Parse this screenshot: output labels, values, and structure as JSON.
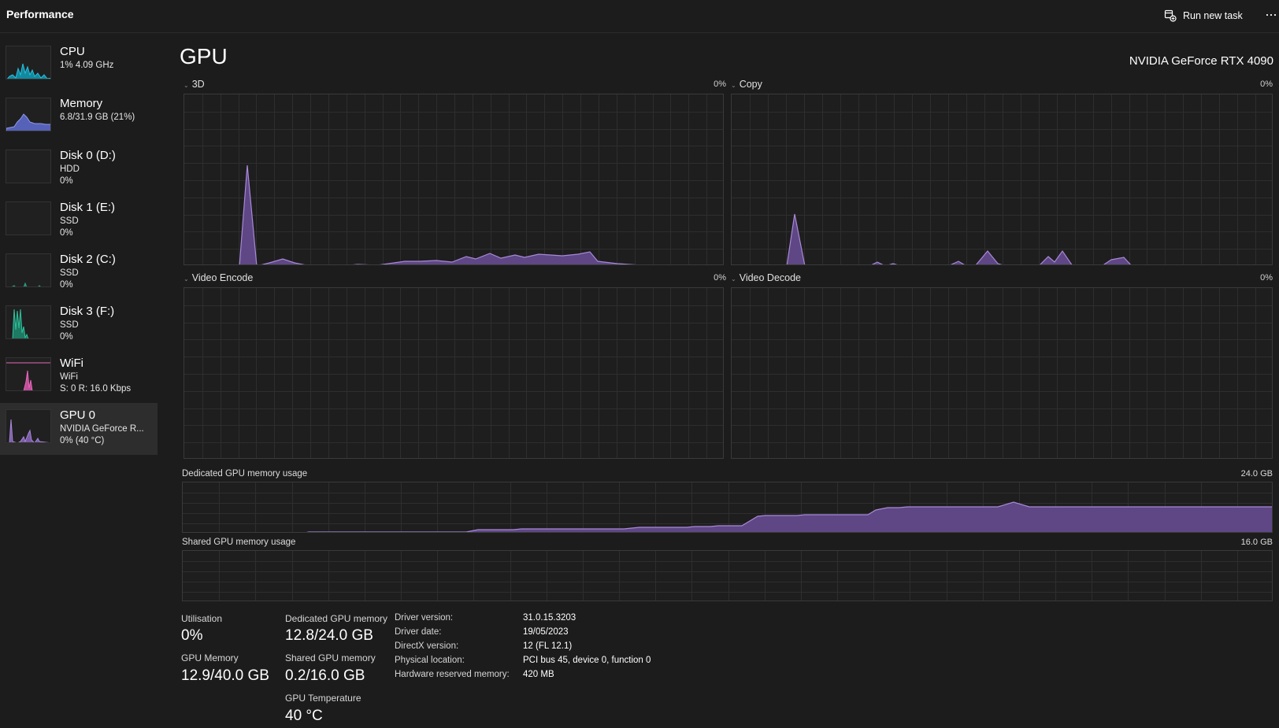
{
  "header": {
    "title": "Performance",
    "run_new_task": "Run new task",
    "more": "···"
  },
  "sidebar": {
    "items": [
      {
        "name": "CPU",
        "sub1": "1% 4.09 GHz",
        "sub2": "",
        "color": "#17a6c8"
      },
      {
        "name": "Memory",
        "sub1": "6.8/31.9 GB (21%)",
        "sub2": "",
        "color": "#7a86e6"
      },
      {
        "name": "Disk 0 (D:)",
        "sub1": "HDD",
        "sub2": "0%",
        "color": "#2aa887"
      },
      {
        "name": "Disk 1 (E:)",
        "sub1": "SSD",
        "sub2": "0%",
        "color": "#2aa887"
      },
      {
        "name": "Disk 2 (C:)",
        "sub1": "SSD",
        "sub2": "0%",
        "color": "#2aa887"
      },
      {
        "name": "Disk 3 (F:)",
        "sub1": "SSD",
        "sub2": "0%",
        "color": "#2aa887"
      },
      {
        "name": "WiFi",
        "sub1": "WiFi",
        "sub2": "S: 0 R: 16.0 Kbps",
        "color": "#e467b8"
      },
      {
        "name": "GPU 0",
        "sub1": "NVIDIA GeForce R...",
        "sub2": "0% (40 °C)",
        "color": "#9a78c8"
      }
    ],
    "selected_index": 7
  },
  "main": {
    "title": "GPU",
    "gpu_model": "NVIDIA GeForce RTX 4090",
    "engines": [
      {
        "label": "3D",
        "percent": "0%"
      },
      {
        "label": "Copy",
        "percent": "0%"
      },
      {
        "label": "Video Encode",
        "percent": "0%"
      },
      {
        "label": "Video Decode",
        "percent": "0%"
      }
    ],
    "dedicated_memory": {
      "label": "Dedicated GPU memory usage",
      "max": "24.0 GB"
    },
    "shared_memory": {
      "label": "Shared GPU memory usage",
      "max": "16.0 GB"
    }
  },
  "stats": {
    "utilisation_label": "Utilisation",
    "utilisation_value": "0%",
    "gpu_memory_label": "GPU Memory",
    "gpu_memory_value": "12.9/40.0 GB",
    "dedicated_label": "Dedicated GPU memory",
    "dedicated_value": "12.8/24.0 GB",
    "shared_label": "Shared GPU memory",
    "shared_value": "0.2/16.0 GB",
    "temp_label": "GPU Temperature",
    "temp_value": "40 °C"
  },
  "info": [
    {
      "key": "Driver version:",
      "value": "31.0.15.3203"
    },
    {
      "key": "Driver date:",
      "value": "19/05/2023"
    },
    {
      "key": "DirectX version:",
      "value": "12 (FL 12.1)"
    },
    {
      "key": "Physical location:",
      "value": "PCI bus 45, device 0, function 0"
    },
    {
      "key": "Hardware reserved memory:",
      "value": "420 MB"
    }
  ],
  "colors": {
    "gpu_fill": "#7b5ba6",
    "gpu_line": "#a888d8",
    "grid": "#2e2e2e",
    "border": "#3a3a3a"
  }
}
